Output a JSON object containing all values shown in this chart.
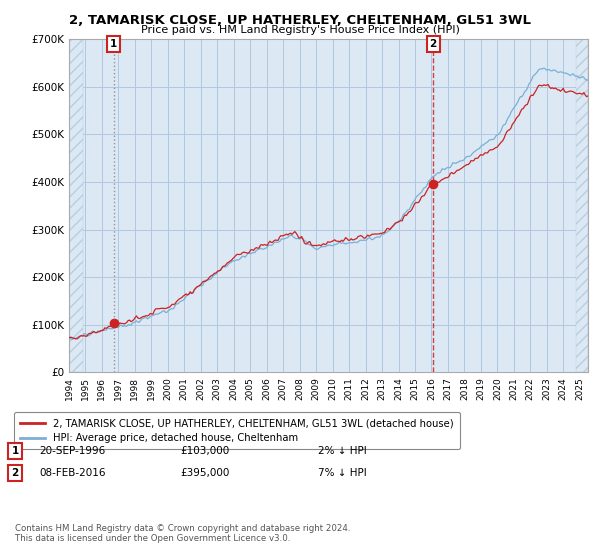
{
  "title": "2, TAMARISK CLOSE, UP HATHERLEY, CHELTENHAM, GL51 3WL",
  "subtitle": "Price paid vs. HM Land Registry's House Price Index (HPI)",
  "hpi_color": "#7bafd4",
  "price_color": "#cc2222",
  "marker1_year": 1996.72,
  "marker1_price": 103000,
  "marker2_year": 2016.1,
  "marker2_price": 395000,
  "ylim": [
    0,
    700000
  ],
  "yticks": [
    0,
    100000,
    200000,
    300000,
    400000,
    500000,
    600000,
    700000
  ],
  "ytick_labels": [
    "£0",
    "£100K",
    "£200K",
    "£300K",
    "£400K",
    "£500K",
    "£600K",
    "£700K"
  ],
  "xlim": [
    1994.0,
    2025.5
  ],
  "xtick_years": [
    1994,
    1995,
    1996,
    1997,
    1998,
    1999,
    2000,
    2001,
    2002,
    2003,
    2004,
    2005,
    2006,
    2007,
    2008,
    2009,
    2010,
    2011,
    2012,
    2013,
    2014,
    2015,
    2016,
    2017,
    2018,
    2019,
    2020,
    2021,
    2022,
    2023,
    2024,
    2025
  ],
  "legend_label1": "2, TAMARISK CLOSE, UP HATHERLEY, CHELTENHAM, GL51 3WL (detached house)",
  "legend_label2": "HPI: Average price, detached house, Cheltenham",
  "note1_num": "1",
  "note1_date": "20-SEP-1996",
  "note1_price": "£103,000",
  "note1_hpi": "2% ↓ HPI",
  "note2_num": "2",
  "note2_date": "08-FEB-2016",
  "note2_price": "£395,000",
  "note2_hpi": "7% ↓ HPI",
  "footer": "Contains HM Land Registry data © Crown copyright and database right 2024.\nThis data is licensed under the Open Government Licence v3.0.",
  "plot_bg": "#dce9f5",
  "fig_bg": "#ffffff",
  "grid_color": "#b0c8e0",
  "hatch_color": "#b8cede"
}
